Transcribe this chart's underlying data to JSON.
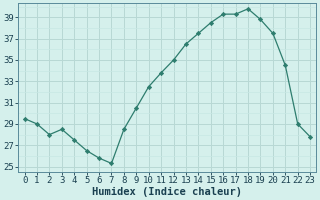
{
  "x": [
    0,
    1,
    2,
    3,
    4,
    5,
    6,
    7,
    8,
    9,
    10,
    11,
    12,
    13,
    14,
    15,
    16,
    17,
    18,
    19,
    20,
    21,
    22,
    23
  ],
  "y": [
    29.5,
    29.0,
    28.0,
    28.5,
    27.5,
    26.5,
    25.8,
    25.3,
    28.5,
    30.5,
    32.5,
    33.8,
    35.0,
    36.5,
    37.5,
    38.5,
    39.3,
    39.3,
    39.8,
    38.8,
    37.5,
    34.5,
    29.0,
    27.8
  ],
  "line_color": "#2e7d6e",
  "marker": "D",
  "marker_size": 2.2,
  "bg_color": "#d5f0ec",
  "grid_color_major": "#b8d8d4",
  "grid_color_minor": "#c8e8e4",
  "tick_color": "#1a4050",
  "xlabel": "Humidex (Indice chaleur)",
  "ylim": [
    24.5,
    40.3
  ],
  "xlim": [
    -0.5,
    23.5
  ],
  "yticks": [
    25,
    27,
    29,
    31,
    33,
    35,
    37,
    39
  ],
  "xticks": [
    0,
    1,
    2,
    3,
    4,
    5,
    6,
    7,
    8,
    9,
    10,
    11,
    12,
    13,
    14,
    15,
    16,
    17,
    18,
    19,
    20,
    21,
    22,
    23
  ],
  "xlabel_fontsize": 7.5,
  "tick_fontsize": 6.5,
  "spine_color": "#5a8a9a"
}
